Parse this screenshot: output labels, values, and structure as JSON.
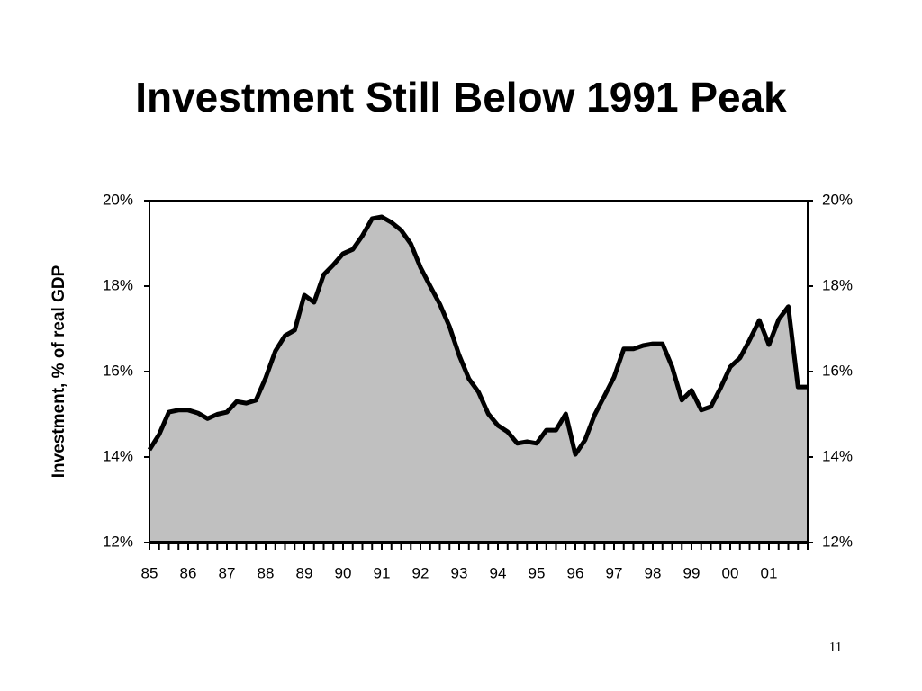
{
  "chart_data": {
    "type": "area",
    "title": "Investment Still Below 1991 Peak",
    "y_axis_label": "Investment, % of real GDP",
    "page_number": "11",
    "categories": [
      "85",
      null,
      null,
      null,
      "86",
      null,
      null,
      null,
      "87",
      null,
      null,
      null,
      "88",
      null,
      null,
      null,
      "89",
      null,
      null,
      null,
      "90",
      null,
      null,
      null,
      "91",
      null,
      null,
      null,
      "92",
      null,
      null,
      null,
      "93",
      null,
      null,
      null,
      "94",
      null,
      null,
      null,
      "95",
      null,
      null,
      null,
      "96",
      null,
      null,
      null,
      "97",
      null,
      null,
      null,
      "98",
      null,
      null,
      null,
      "99",
      null,
      null,
      null,
      "00",
      null,
      null,
      null,
      "01",
      null,
      null,
      null,
      null
    ],
    "values": [
      14.17,
      14.53,
      15.05,
      15.1,
      15.1,
      15.03,
      14.9,
      15.0,
      15.05,
      15.3,
      15.26,
      15.33,
      15.85,
      16.48,
      16.84,
      16.97,
      17.79,
      17.62,
      18.27,
      18.5,
      18.76,
      18.86,
      19.18,
      19.58,
      19.62,
      19.49,
      19.31,
      18.99,
      18.44,
      18.0,
      17.58,
      17.05,
      16.38,
      15.83,
      15.52,
      15.01,
      14.74,
      14.59,
      14.32,
      14.36,
      14.32,
      14.63,
      14.63,
      15.01,
      14.06,
      14.4,
      14.99,
      15.43,
      15.87,
      16.53,
      16.53,
      16.61,
      16.65,
      16.65,
      16.11,
      15.33,
      15.56,
      15.1,
      15.18,
      15.62,
      16.11,
      16.32,
      16.74,
      17.2,
      16.63,
      17.22,
      17.52,
      15.64,
      15.64
    ],
    "color": "#c0c0c0",
    "line_color": "#000000",
    "ylim": [
      12,
      20
    ],
    "yticks": [
      {
        "value": 12,
        "label": "12%"
      },
      {
        "value": 14,
        "label": "14%"
      },
      {
        "value": 16,
        "label": "16%"
      },
      {
        "value": 18,
        "label": "18%"
      },
      {
        "value": 20,
        "label": "20%"
      }
    ],
    "y2lim": [
      12,
      20
    ],
    "y2ticks": [
      {
        "value": 12,
        "label": "12%"
      },
      {
        "value": 14,
        "label": "14%"
      },
      {
        "value": 16,
        "label": "16%"
      },
      {
        "value": 18,
        "label": "18%"
      },
      {
        "value": 20,
        "label": "20%"
      }
    ],
    "grid": false
  }
}
